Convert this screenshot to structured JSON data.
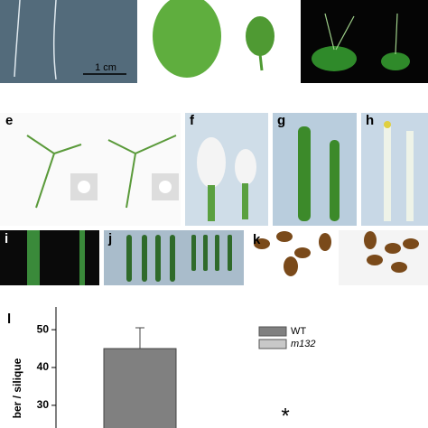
{
  "scale_bar": "1 cm",
  "panels": [
    "e",
    "f",
    "g",
    "h",
    "i",
    "j",
    "k",
    "l"
  ],
  "chart_data": {
    "type": "bar",
    "y_label": "ber / silique",
    "series": [
      {
        "name": "WT",
        "color": "#808080",
        "values": [
          45
        ],
        "errors": [
          5.5
        ]
      },
      {
        "name": "m132",
        "color": "#c8c8c8"
      }
    ],
    "ylim": [
      24,
      56
    ],
    "yticks": [
      30,
      40,
      50
    ],
    "annotation": "*"
  }
}
